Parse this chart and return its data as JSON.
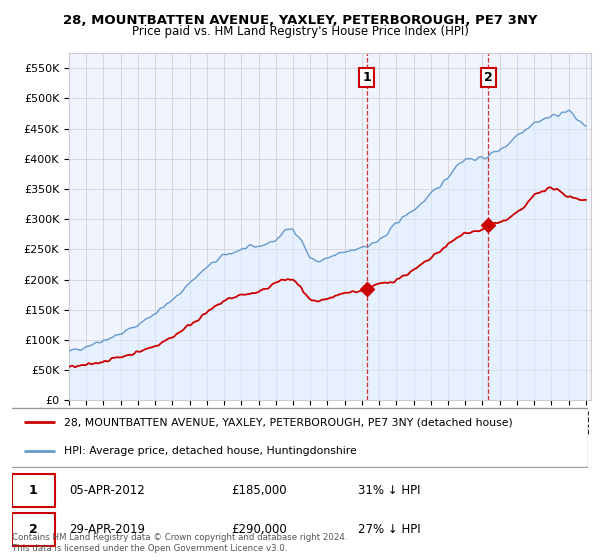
{
  "title": "28, MOUNTBATTEN AVENUE, YAXLEY, PETERBOROUGH, PE7 3NY",
  "subtitle": "Price paid vs. HM Land Registry's House Price Index (HPI)",
  "red_label": "28, MOUNTBATTEN AVENUE, YAXLEY, PETERBOROUGH, PE7 3NY (detached house)",
  "blue_label": "HPI: Average price, detached house, Huntingdonshire",
  "ann1_label": "1",
  "ann1_date": "05-APR-2012",
  "ann1_price": "£185,000",
  "ann1_pct": "31% ↓ HPI",
  "ann1_x": 2012.27,
  "ann1_y": 185000,
  "ann2_label": "2",
  "ann2_date": "29-APR-2019",
  "ann2_price": "£290,000",
  "ann2_pct": "27% ↓ HPI",
  "ann2_x": 2019.33,
  "ann2_y": 290000,
  "footer": "Contains HM Land Registry data © Crown copyright and database right 2024.\nThis data is licensed under the Open Government Licence v3.0.",
  "ylim": [
    0,
    575000
  ],
  "yticks": [
    0,
    50000,
    100000,
    150000,
    200000,
    250000,
    300000,
    350000,
    400000,
    450000,
    500000,
    550000
  ],
  "ytick_labels": [
    "£0",
    "£50K",
    "£100K",
    "£150K",
    "£200K",
    "£250K",
    "£300K",
    "£350K",
    "£400K",
    "£450K",
    "£500K",
    "£550K"
  ],
  "red_color": "#cc0000",
  "blue_color": "#6699cc",
  "blue_fill": "#ddeeff",
  "bg_color": "#f0f4ff",
  "grid_color": "#cccccc",
  "xlim_left": 1995,
  "xlim_right": 2025.3
}
